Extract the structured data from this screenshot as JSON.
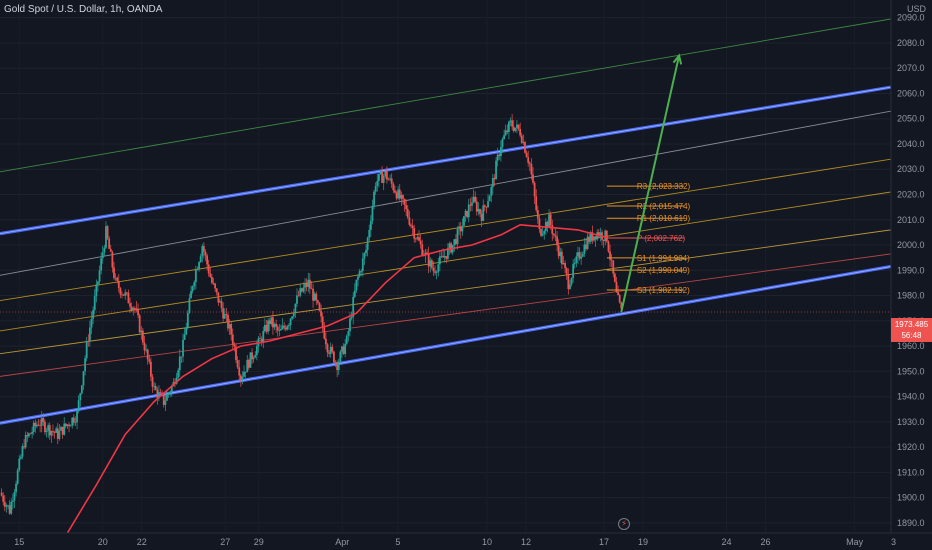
{
  "header": {
    "title": "Gold Spot / U.S. Dollar, 1h, OANDA",
    "currency": "USD"
  },
  "price_badge": {
    "price": "1973.485",
    "countdown": "56:48"
  },
  "colors": {
    "background": "#131722",
    "up": "#26a69a",
    "down": "#ef5350",
    "channel": "#4a6cf7",
    "ma": "#f23645",
    "arrow": "#4caf50",
    "pivot": "#e89124"
  },
  "chart_data": {
    "type": "candlestick",
    "title": "Gold Spot / U.S. Dollar, 1h, OANDA",
    "ylim": [
      1886,
      2097
    ],
    "y_ticks": [
      1890,
      1900,
      1910,
      1920,
      1930,
      1940,
      1950,
      1960,
      1970,
      1980,
      1990,
      2000,
      2010,
      2020,
      2030,
      2040,
      2050,
      2060,
      2070,
      2080,
      2090
    ],
    "x_ticks": [
      "15",
      "20",
      "22",
      "27",
      "29",
      "Apr",
      "5",
      "10",
      "12",
      "17",
      "19",
      "24",
      "26",
      "May",
      "3"
    ],
    "price_path": [
      [
        0,
        1902
      ],
      [
        2,
        1895
      ],
      [
        5,
        1922
      ],
      [
        8,
        1930
      ],
      [
        12,
        1925
      ],
      [
        16,
        1933
      ],
      [
        18,
        1960
      ],
      [
        20,
        1982
      ],
      [
        22,
        2005
      ],
      [
        24,
        1985
      ],
      [
        26,
        1980
      ],
      [
        28,
        1975
      ],
      [
        30,
        1960
      ],
      [
        32,
        1943
      ],
      [
        34,
        1938
      ],
      [
        36,
        1945
      ],
      [
        38,
        1960
      ],
      [
        40,
        1985
      ],
      [
        42,
        2000
      ],
      [
        44,
        1985
      ],
      [
        46,
        1975
      ],
      [
        48,
        1965
      ],
      [
        50,
        1948
      ],
      [
        52,
        1955
      ],
      [
        54,
        1962
      ],
      [
        56,
        1970
      ],
      [
        58,
        1965
      ],
      [
        60,
        1970
      ],
      [
        62,
        1980
      ],
      [
        64,
        1985
      ],
      [
        66,
        1975
      ],
      [
        68,
        1960
      ],
      [
        70,
        1953
      ],
      [
        72,
        1962
      ],
      [
        74,
        1985
      ],
      [
        76,
        1998
      ],
      [
        78,
        2025
      ],
      [
        80,
        2028
      ],
      [
        82,
        2022
      ],
      [
        84,
        2015
      ],
      [
        86,
        2005
      ],
      [
        88,
        1997
      ],
      [
        90,
        1990
      ],
      [
        92,
        1995
      ],
      [
        94,
        2000
      ],
      [
        96,
        2008
      ],
      [
        98,
        2018
      ],
      [
        100,
        2012
      ],
      [
        102,
        2022
      ],
      [
        104,
        2040
      ],
      [
        106,
        2048
      ],
      [
        108,
        2045
      ],
      [
        110,
        2032
      ],
      [
        112,
        2005
      ],
      [
        114,
        2010
      ],
      [
        116,
        1998
      ],
      [
        118,
        1985
      ],
      [
        120,
        1995
      ],
      [
        122,
        2002
      ],
      [
        124,
        2005
      ],
      [
        126,
        2003
      ],
      [
        128,
        1980
      ],
      [
        129,
        1973.485
      ]
    ],
    "ma_path": [
      [
        14,
        1886
      ],
      [
        20,
        1905
      ],
      [
        26,
        1925
      ],
      [
        32,
        1938
      ],
      [
        38,
        1948
      ],
      [
        44,
        1955
      ],
      [
        50,
        1960
      ],
      [
        56,
        1962
      ],
      [
        62,
        1965
      ],
      [
        68,
        1968
      ],
      [
        74,
        1973
      ],
      [
        80,
        1985
      ],
      [
        86,
        1995
      ],
      [
        92,
        1998
      ],
      [
        98,
        2000
      ],
      [
        104,
        2004
      ],
      [
        108,
        2008
      ],
      [
        114,
        2007
      ],
      [
        120,
        2006
      ],
      [
        126,
        2003
      ]
    ],
    "x_domain": [
      0,
      185
    ],
    "channel_upper": [
      [
        0,
        2004.5
      ],
      [
        185,
        2062.5
      ]
    ],
    "channel_lower": [
      [
        0,
        1929.5
      ],
      [
        185,
        1991.5
      ]
    ],
    "fan_lines": [
      {
        "from": [
          0,
          2029
        ],
        "to": [
          185,
          2089.5
        ],
        "color": "#4caf50"
      },
      {
        "from": [
          0,
          1988
        ],
        "to": [
          185,
          2053
        ],
        "color": "#b2b5be"
      },
      {
        "from": [
          0,
          1978
        ],
        "to": [
          185,
          2034
        ],
        "color": "#e6b422"
      },
      {
        "from": [
          0,
          1966
        ],
        "to": [
          185,
          2021
        ],
        "color": "#e6b422"
      },
      {
        "from": [
          0,
          1957
        ],
        "to": [
          185,
          2006
        ],
        "color": "#f0c040"
      },
      {
        "from": [
          0,
          1948
        ],
        "to": [
          185,
          1996.5
        ],
        "color": "#ef5350"
      }
    ],
    "arrow": {
      "from": [
        129,
        1973.485
      ],
      "to": [
        141,
        2075
      ],
      "color": "#4caf50"
    },
    "pivot_levels": [
      {
        "label": "R3 (2,023.332)",
        "value": 2023.332,
        "color": "#e89124"
      },
      {
        "label": "R2 (2,015.474)",
        "value": 2015.474,
        "color": "#e89124"
      },
      {
        "label": "R1 (2,010.619)",
        "value": 2010.619,
        "color": "#e89124"
      },
      {
        "label": "P (2,002.762)",
        "value": 2002.762,
        "color": "#ef5350"
      },
      {
        "label": "S1 (1,994.904)",
        "value": 1994.904,
        "color": "#e89124"
      },
      {
        "label": "S2 (1,990.049)",
        "value": 1990.049,
        "color": "#e89124"
      },
      {
        "label": "S3 (1,982.192)",
        "value": 1982.192,
        "color": "#e89124"
      }
    ],
    "pivot_x_range": [
      126,
      142
    ],
    "last_price": 1973.485
  }
}
